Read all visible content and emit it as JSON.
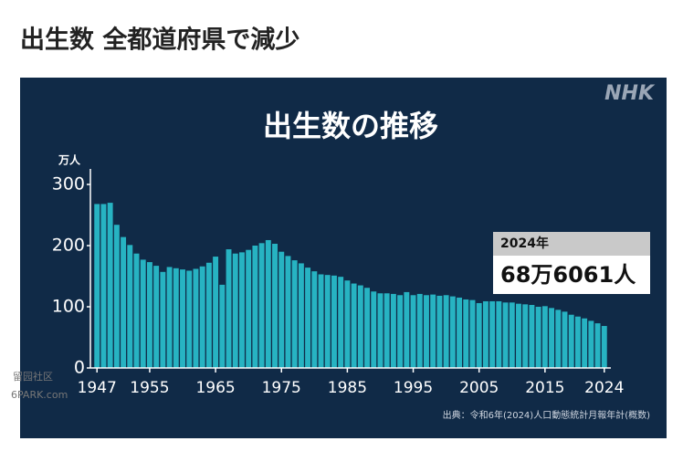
{
  "page_title": "出生数 全都道府県で減少",
  "watermark": [
    "留园社区",
    "6PARK.com"
  ],
  "chart_data": {
    "type": "bar",
    "title": "出生数の推移",
    "logo": "NHK",
    "y_unit": "万人",
    "source": "出典：令和6年(2024)人口動態統計月報年計(概数)",
    "color": "#27b3c2",
    "x": [
      1947,
      1948,
      1949,
      1950,
      1951,
      1952,
      1953,
      1954,
      1955,
      1956,
      1957,
      1958,
      1959,
      1960,
      1961,
      1962,
      1963,
      1964,
      1965,
      1966,
      1967,
      1968,
      1969,
      1970,
      1971,
      1972,
      1973,
      1974,
      1975,
      1976,
      1977,
      1978,
      1979,
      1980,
      1981,
      1982,
      1983,
      1984,
      1985,
      1986,
      1987,
      1988,
      1989,
      1990,
      1991,
      1992,
      1993,
      1994,
      1995,
      1996,
      1997,
      1998,
      1999,
      2000,
      2001,
      2002,
      2003,
      2004,
      2005,
      2006,
      2007,
      2008,
      2009,
      2010,
      2011,
      2012,
      2013,
      2014,
      2015,
      2016,
      2017,
      2018,
      2019,
      2020,
      2021,
      2022,
      2023,
      2024
    ],
    "values": [
      268,
      268,
      270,
      234,
      214,
      201,
      187,
      177,
      173,
      167,
      157,
      165,
      163,
      161,
      159,
      162,
      166,
      172,
      182,
      136,
      194,
      187,
      189,
      193,
      200,
      204,
      209,
      203,
      190,
      183,
      176,
      171,
      164,
      158,
      153,
      152,
      151,
      149,
      143,
      138,
      135,
      131,
      125,
      122,
      122,
      121,
      119,
      124,
      119,
      121,
      119,
      120,
      118,
      119,
      117,
      115,
      112,
      111,
      106,
      109,
      109,
      109,
      107,
      107,
      105,
      104,
      103,
      100,
      101,
      98,
      95,
      92,
      87,
      84,
      81,
      77,
      73,
      68.6061
    ],
    "xlim": [
      1946,
      2025
    ],
    "xticks": [
      1947,
      1955,
      1965,
      1975,
      1985,
      1995,
      2005,
      2015,
      2024
    ],
    "ylim": [
      0,
      300
    ],
    "yticks": [
      0,
      100,
      200,
      300
    ],
    "annotation": {
      "title": "2024年",
      "text": "68万6061人"
    }
  }
}
